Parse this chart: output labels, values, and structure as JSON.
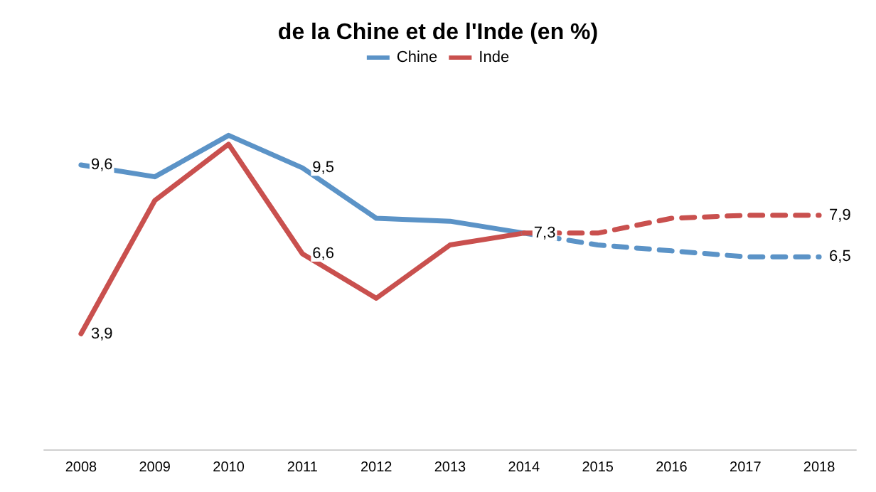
{
  "chart_data": {
    "type": "line",
    "title": "de la Chine et de l'Inde (en %)",
    "categories": [
      "2008",
      "2009",
      "2010",
      "2011",
      "2012",
      "2013",
      "2014",
      "2015",
      "2016",
      "2017",
      "2018"
    ],
    "grid": false,
    "legend": "top",
    "marker": "none",
    "series": [
      {
        "name": "Chine",
        "color": "#5b93c7",
        "line_style": "solid",
        "values": [
          9.6,
          9.2,
          10.6,
          9.5,
          7.8,
          7.7,
          7.3,
          null,
          null,
          null,
          null
        ],
        "value_labels": [
          "9,6",
          null,
          null,
          "9,5",
          null,
          null,
          null,
          null,
          null,
          null,
          null
        ]
      },
      {
        "name": "Inde",
        "color": "#c9504e",
        "line_style": "solid",
        "values": [
          3.9,
          8.4,
          10.3,
          6.6,
          5.1,
          6.9,
          7.3,
          null,
          null,
          null,
          null
        ],
        "value_labels": [
          "3,9",
          null,
          null,
          "6,6",
          null,
          null,
          "7,3",
          null,
          null,
          null,
          null
        ]
      },
      {
        "color": "#5b93c7",
        "line_style": "dashed",
        "values": [
          null,
          null,
          null,
          null,
          null,
          null,
          7.3,
          6.9,
          6.7,
          6.5,
          6.5
        ],
        "value_labels": [
          null,
          null,
          null,
          null,
          null,
          null,
          null,
          null,
          null,
          null,
          "6,5"
        ]
      },
      {
        "color": "#c9504e",
        "line_style": "dashed",
        "values": [
          null,
          null,
          null,
          null,
          null,
          null,
          7.3,
          7.3,
          7.8,
          7.9,
          7.9
        ],
        "value_labels": [
          null,
          null,
          null,
          null,
          null,
          null,
          null,
          null,
          null,
          null,
          "7,9"
        ]
      }
    ]
  }
}
